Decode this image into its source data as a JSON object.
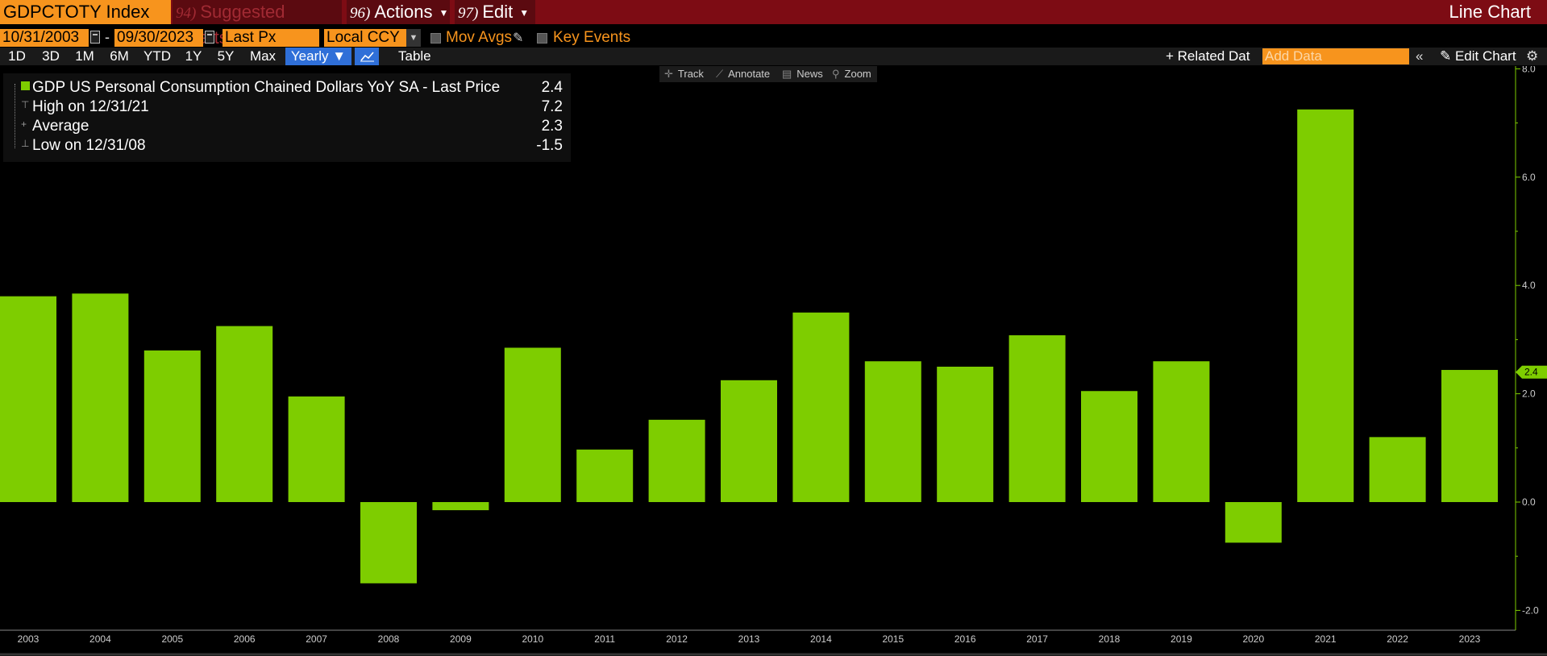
{
  "title_bar": {
    "ticker": "GDPCTOTY Index",
    "suggested_num": "94)",
    "suggested_label": "Suggested Charts",
    "actions_num": "96)",
    "actions_label": "Actions",
    "edit_num": "97)",
    "edit_label": "Edit",
    "chart_type": "Line Chart"
  },
  "controls": {
    "start_date": "10/31/2003",
    "date_separator": "-",
    "end_date": "09/30/2023",
    "price_field": "Last Px",
    "currency": "Local CCY",
    "mov_avgs": "Mov Avgs",
    "key_events": "Key Events"
  },
  "periods": {
    "items": [
      "1D",
      "3D",
      "1M",
      "6M",
      "YTD",
      "1Y",
      "5Y",
      "Max"
    ],
    "selected_frequency": "Yearly ▼",
    "table_label": "Table",
    "related_label": "+ Related Dat",
    "add_data_placeholder": "Add Data",
    "collapse_label": "«",
    "edit_chart_label": "Edit Chart"
  },
  "tools": {
    "track": "Track",
    "annotate": "Annotate",
    "news": "News",
    "zoom": "Zoom"
  },
  "legend": {
    "series_label": "GDP US Personal Consumption Chained Dollars YoY SA - Last Price",
    "series_value": "2.4",
    "high_label": "High on 12/31/21",
    "high_value": "7.2",
    "average_label": "Average",
    "average_value": "2.3",
    "low_label": "Low on 12/31/08",
    "low_value": "-1.5"
  },
  "colors": {
    "bar": "#7ecd00",
    "accent_orange": "#f7941d",
    "title_bar": "#7d0c14",
    "axis": "#7ecd00"
  },
  "chart_data": {
    "type": "bar",
    "categories": [
      "2003",
      "2004",
      "2005",
      "2006",
      "2007",
      "2008",
      "2009",
      "2010",
      "2011",
      "2012",
      "2013",
      "2014",
      "2015",
      "2016",
      "2017",
      "2018",
      "2019",
      "2020",
      "2021",
      "2022",
      "2023"
    ],
    "series": [
      {
        "name": "GDP US Personal Consumption Chained Dollars YoY SA - Last Price",
        "values": [
          3.8,
          3.85,
          2.8,
          3.25,
          1.95,
          -1.5,
          -0.15,
          2.85,
          0.97,
          1.52,
          2.25,
          3.5,
          2.6,
          2.5,
          3.08,
          2.05,
          2.6,
          -0.75,
          7.25,
          1.2,
          2.44
        ]
      }
    ],
    "ylim": [
      -2.3,
      8.0
    ],
    "yticks": [
      8.0,
      6.0,
      4.0,
      2.0,
      0.0,
      -2.0
    ],
    "ytick_labels": [
      "8.0",
      "6.0",
      "4.0",
      "2.0",
      "0.0",
      "-2.0"
    ],
    "last_value_label": "2.4",
    "last_value": 2.4
  }
}
